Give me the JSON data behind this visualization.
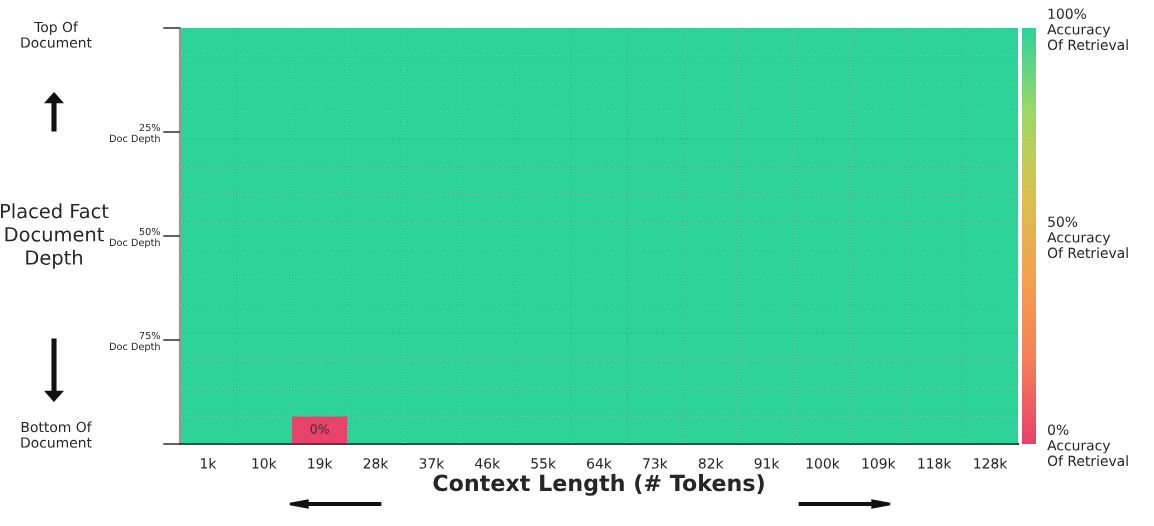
{
  "chart_data": {
    "type": "heatmap",
    "xlabel": "Context Length (# Tokens)",
    "ylabel": "Placed Fact\nDocument\nDepth",
    "categories": [
      "1k",
      "10k",
      "19k",
      "28k",
      "37k",
      "46k",
      "55k",
      "64k",
      "73k",
      "82k",
      "91k",
      "100k",
      "109k",
      "118k",
      "128k"
    ],
    "ylim": [
      100,
      0
    ],
    "yticks": [
      {
        "value": 0,
        "label": null
      },
      {
        "value": 25,
        "label": "25%\nDoc Depth"
      },
      {
        "value": 50,
        "label": "50%\nDoc Depth"
      },
      {
        "value": 75,
        "label": "75%\nDoc Depth"
      },
      {
        "value": 100,
        "label": null
      }
    ],
    "cells": [
      [
        100,
        100,
        100,
        100,
        100,
        100,
        100,
        100,
        100,
        100,
        100,
        100,
        100,
        100,
        100
      ],
      [
        100,
        100,
        100,
        100,
        100,
        100,
        100,
        100,
        100,
        100,
        100,
        100,
        100,
        100,
        100
      ],
      [
        100,
        100,
        100,
        100,
        100,
        100,
        100,
        100,
        100,
        100,
        100,
        100,
        100,
        100,
        100
      ],
      [
        100,
        100,
        100,
        100,
        100,
        100,
        100,
        100,
        100,
        100,
        100,
        100,
        100,
        100,
        100
      ],
      [
        100,
        100,
        100,
        100,
        100,
        100,
        100,
        100,
        100,
        100,
        100,
        100,
        100,
        100,
        100
      ],
      [
        100,
        100,
        100,
        100,
        100,
        100,
        100,
        100,
        100,
        100,
        100,
        100,
        100,
        100,
        100
      ],
      [
        100,
        100,
        100,
        100,
        100,
        100,
        100,
        100,
        100,
        100,
        100,
        100,
        100,
        100,
        100
      ],
      [
        100,
        100,
        100,
        100,
        100,
        100,
        100,
        100,
        100,
        100,
        100,
        100,
        100,
        100,
        100
      ],
      [
        100,
        100,
        100,
        100,
        100,
        100,
        100,
        100,
        100,
        100,
        100,
        100,
        100,
        100,
        100
      ],
      [
        100,
        100,
        100,
        100,
        100,
        100,
        100,
        100,
        100,
        100,
        100,
        100,
        100,
        100,
        100
      ],
      [
        100,
        100,
        100,
        100,
        100,
        100,
        100,
        100,
        100,
        100,
        100,
        100,
        100,
        100,
        100
      ],
      [
        100,
        100,
        100,
        100,
        100,
        100,
        100,
        100,
        100,
        100,
        100,
        100,
        100,
        100,
        100
      ],
      [
        100,
        100,
        100,
        100,
        100,
        100,
        100,
        100,
        100,
        100,
        100,
        100,
        100,
        100,
        100
      ],
      [
        100,
        100,
        100,
        100,
        100,
        100,
        100,
        100,
        100,
        100,
        100,
        100,
        100,
        100,
        100
      ],
      [
        100,
        100,
        0,
        100,
        100,
        100,
        100,
        100,
        100,
        100,
        100,
        100,
        100,
        100,
        100
      ]
    ],
    "cell_labels": [
      [
        null,
        null,
        null,
        null,
        null,
        null,
        null,
        null,
        null,
        null,
        null,
        null,
        null,
        null,
        null
      ],
      [
        null,
        null,
        null,
        null,
        null,
        null,
        null,
        null,
        null,
        null,
        null,
        null,
        null,
        null,
        null
      ],
      [
        null,
        null,
        null,
        null,
        null,
        null,
        null,
        null,
        null,
        null,
        null,
        null,
        null,
        null,
        null
      ],
      [
        null,
        null,
        null,
        null,
        null,
        null,
        null,
        null,
        null,
        null,
        null,
        null,
        null,
        null,
        null
      ],
      [
        null,
        null,
        null,
        null,
        null,
        null,
        null,
        null,
        null,
        null,
        null,
        null,
        null,
        null,
        null
      ],
      [
        null,
        null,
        null,
        null,
        null,
        null,
        null,
        null,
        null,
        null,
        null,
        null,
        null,
        null,
        null
      ],
      [
        null,
        null,
        null,
        null,
        null,
        null,
        null,
        null,
        null,
        null,
        null,
        null,
        null,
        null,
        null
      ],
      [
        null,
        null,
        null,
        null,
        null,
        null,
        null,
        null,
        null,
        null,
        null,
        null,
        null,
        null,
        null
      ],
      [
        null,
        null,
        null,
        null,
        null,
        null,
        null,
        null,
        null,
        null,
        null,
        null,
        null,
        null,
        null
      ],
      [
        null,
        null,
        null,
        null,
        null,
        null,
        null,
        null,
        null,
        null,
        null,
        null,
        null,
        null,
        null
      ],
      [
        null,
        null,
        null,
        null,
        null,
        null,
        null,
        null,
        null,
        null,
        null,
        null,
        null,
        null,
        null
      ],
      [
        null,
        null,
        null,
        null,
        null,
        null,
        null,
        null,
        null,
        null,
        null,
        null,
        null,
        null,
        null
      ],
      [
        null,
        null,
        null,
        null,
        null,
        null,
        null,
        null,
        null,
        null,
        null,
        null,
        null,
        null,
        null
      ],
      [
        null,
        null,
        null,
        null,
        null,
        null,
        null,
        null,
        null,
        null,
        null,
        null,
        null,
        null,
        null
      ],
      [
        null,
        null,
        "0%",
        null,
        null,
        null,
        null,
        null,
        null,
        null,
        null,
        null,
        null,
        null,
        null
      ]
    ],
    "clim": [
      0,
      100
    ],
    "cticks": [
      {
        "value": 0,
        "label": "0%\nAccuracy\nOf Retrieval"
      },
      {
        "value": 50,
        "label": "50%\nAccuracy\nOf Retrieval"
      },
      {
        "value": 100,
        "label": "100%\nAccuracy\nOf Retrieval"
      }
    ],
    "annotations": [
      "Top Of\nDocument",
      "Bottom Of\nDocument"
    ],
    "grid": true
  }
}
